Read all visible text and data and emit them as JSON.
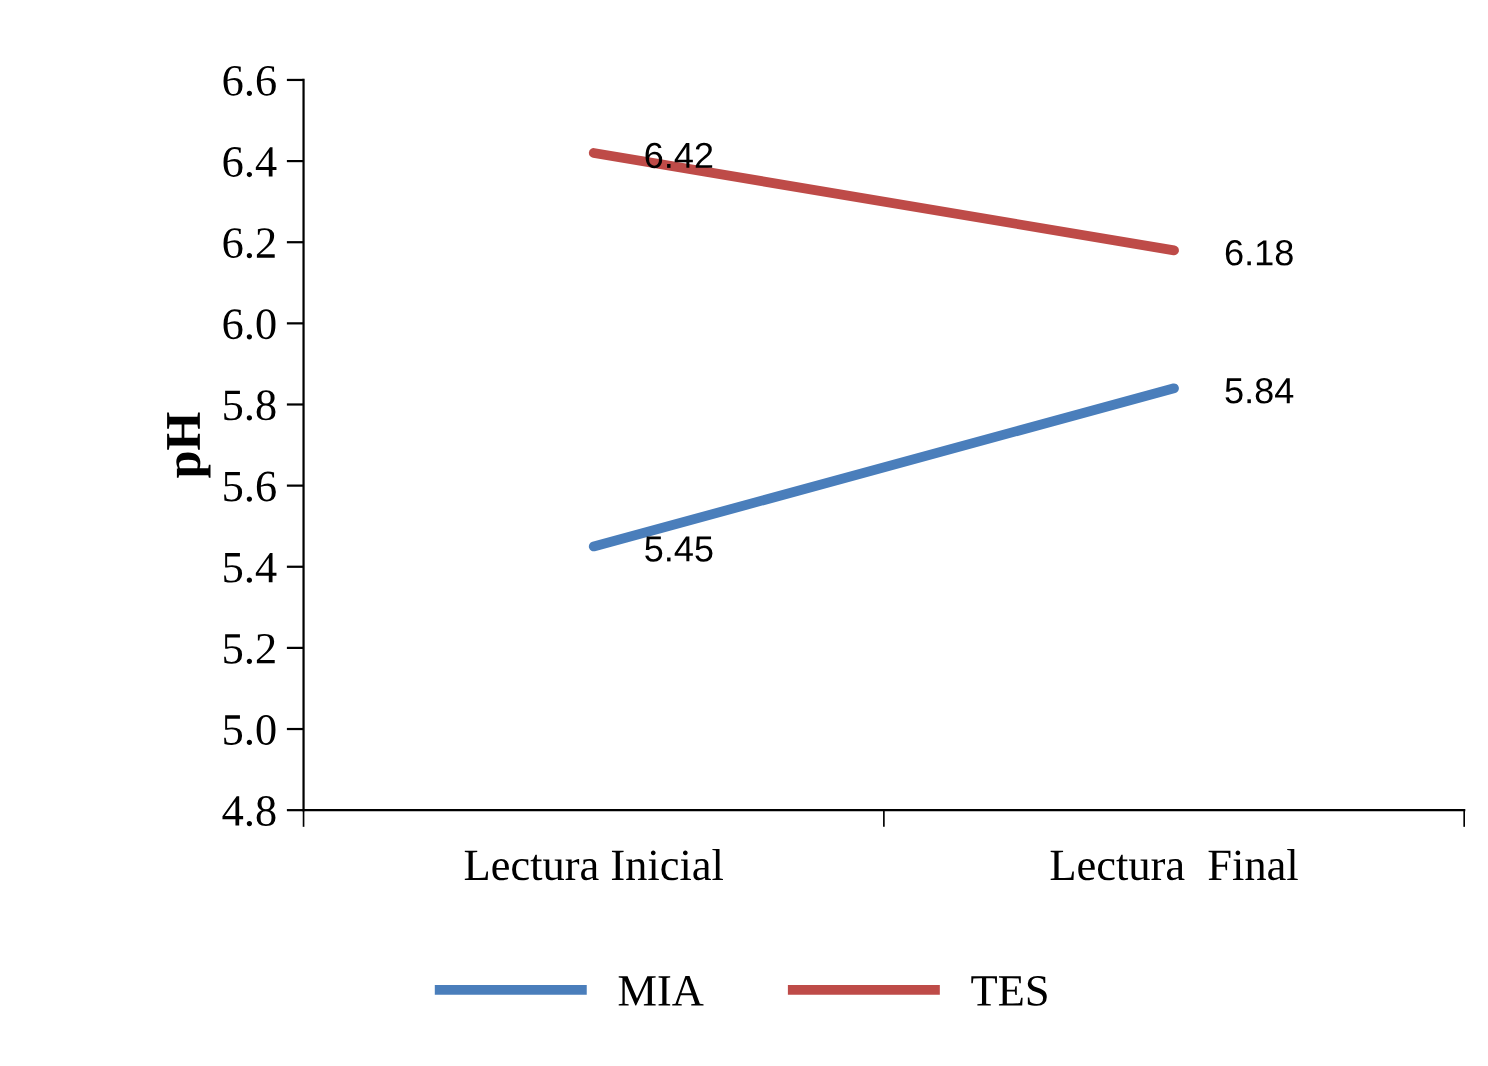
{
  "chart_data": {
    "type": "line",
    "ylabel": "pH",
    "categories": [
      "Lectura Inicial",
      "Lectura  Final"
    ],
    "series": [
      {
        "name": "MIA",
        "color": "#4a7ebb",
        "values": [
          5.45,
          5.84
        ]
      },
      {
        "name": "TES",
        "color": "#be4b48",
        "values": [
          6.42,
          6.18
        ]
      }
    ],
    "ylim": [
      4.8,
      6.6
    ],
    "yticks": [
      {
        "value": 4.8,
        "label": "4.8"
      },
      {
        "value": 5.0,
        "label": "5.0"
      },
      {
        "value": 5.2,
        "label": "5.2"
      },
      {
        "value": 5.4,
        "label": "5.4"
      },
      {
        "value": 5.6,
        "label": "5.6"
      },
      {
        "value": 5.8,
        "label": "5.8"
      },
      {
        "value": 6.0,
        "label": "6.0"
      },
      {
        "value": 6.2,
        "label": "6.2"
      },
      {
        "value": 6.4,
        "label": "6.4"
      },
      {
        "value": 6.6,
        "label": "6.6"
      }
    ],
    "grid": false,
    "legend": "bottom",
    "marker": "none",
    "line_style": "solid",
    "data_labels": true
  }
}
